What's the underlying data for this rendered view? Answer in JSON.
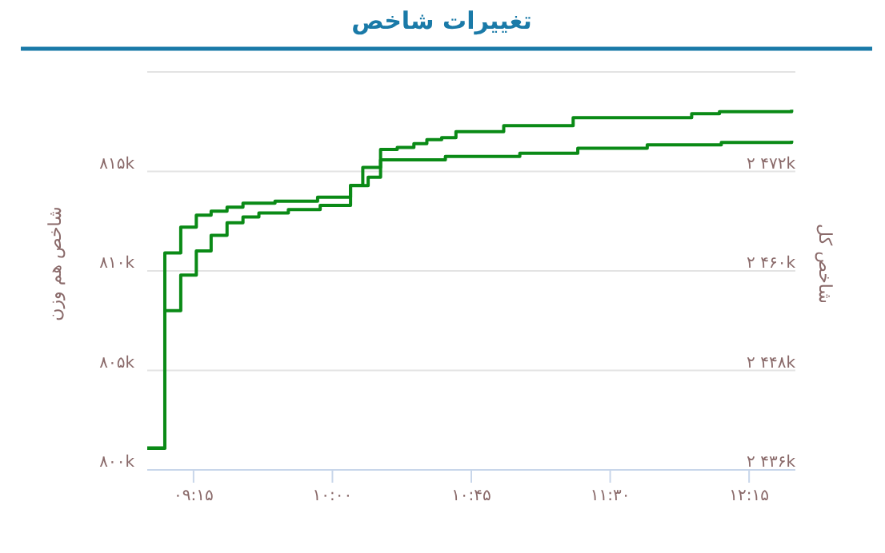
{
  "chart_data": {
    "type": "step",
    "title": "تغییرات شاخص",
    "ylabel": "شاخص هم وزن",
    "y2label": "شاخص کل",
    "xlim": [
      9.0,
      12.5
    ],
    "xticks": [
      {
        "value": 9.25,
        "label": "۰۹:۱۵"
      },
      {
        "value": 10,
        "label": "۱۰:۰۰"
      },
      {
        "value": 10.75,
        "label": "۱۰:۴۵"
      },
      {
        "value": 11.5,
        "label": "۱۱:۳۰"
      },
      {
        "value": 12.25,
        "label": "۱۲:۱۵"
      }
    ],
    "ylim": [
      800000,
      820000
    ],
    "yticks": [
      {
        "value": 800000,
        "label": "۸۰۰k"
      },
      {
        "value": 805000,
        "label": "۸۰۵k"
      },
      {
        "value": 810000,
        "label": "۸۱۰k"
      },
      {
        "value": 815000,
        "label": "۸۱۵k"
      },
      {
        "value": 820000,
        "label": null
      }
    ],
    "y2lim": [
      2436000,
      2484000
    ],
    "y2ticks": [
      {
        "value": 2436000,
        "label": "۲ ۴۳۶k"
      },
      {
        "value": 2448000,
        "label": "۲ ۴۴۸k"
      },
      {
        "value": 2460000,
        "label": "۲ ۴۶۰k"
      },
      {
        "value": 2472000,
        "label": "۲ ۴۷۲k"
      }
    ],
    "grid": "y",
    "line_style": "solid",
    "marker": "none",
    "series": [
      {
        "color": "#0a8a16",
        "x": [
          9.0,
          9.095,
          9.181,
          9.265,
          9.345,
          9.431,
          9.517,
          9.69,
          9.92,
          10.098,
          10.164,
          10.26,
          10.35,
          10.44,
          10.51,
          10.59,
          10.667,
          10.925,
          11.3,
          11.61,
          11.94,
          12.09,
          12.48
        ],
        "values": [
          801100,
          810900,
          812200,
          812800,
          813000,
          813200,
          813400,
          813500,
          813700,
          814300,
          815200,
          816100,
          816200,
          816400,
          816600,
          816700,
          817000,
          817300,
          817700,
          817700,
          817900,
          818000,
          818100
        ]
      },
      {
        "color": "#0a8a16",
        "axis": "y2",
        "x": [
          9.0,
          9.095,
          9.181,
          9.265,
          9.345,
          9.431,
          9.517,
          9.603,
          9.762,
          9.934,
          10.098,
          10.193,
          10.26,
          10.61,
          11.012,
          11.325,
          11.7,
          12.1,
          12.48
        ],
        "values": [
          2438600,
          2455200,
          2459500,
          2462400,
          2464300,
          2465800,
          2466500,
          2467000,
          2467400,
          2467900,
          2470300,
          2471300,
          2473400,
          2473800,
          2474200,
          2474800,
          2475200,
          2475500,
          2475700
        ]
      }
    ]
  }
}
